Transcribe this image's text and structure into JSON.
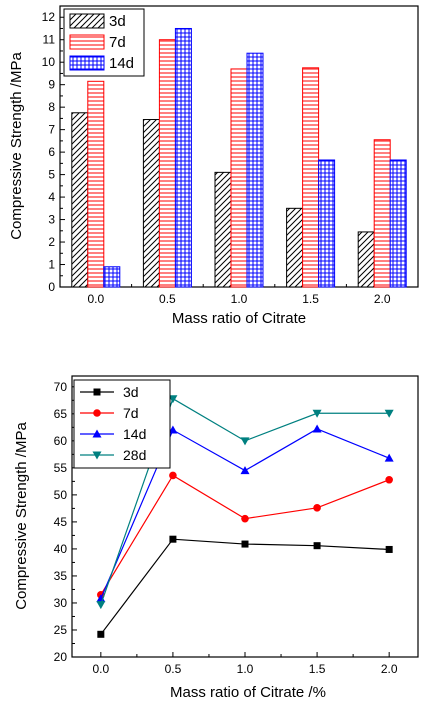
{
  "chart_data": [
    {
      "type": "bar",
      "xlabel": "Mass ratio of Citrate",
      "ylabel": "Compressive Strength /MPa",
      "categories": [
        "0.0",
        "0.5",
        "1.0",
        "1.5",
        "2.0"
      ],
      "ylim": [
        0,
        12.5
      ],
      "yticks": [
        "0",
        "1",
        "2",
        "3",
        "4",
        "5",
        "6",
        "7",
        "8",
        "9",
        "10",
        "11",
        "12"
      ],
      "legend_position": "top-left",
      "series": [
        {
          "name": "3d",
          "values": [
            7.75,
            7.45,
            5.1,
            3.5,
            2.45
          ],
          "color": "#000000",
          "pattern": "diagonal hatch"
        },
        {
          "name": "7d",
          "values": [
            9.15,
            11.0,
            9.7,
            9.75,
            6.55
          ],
          "color": "#ff0000",
          "pattern": "horizontal lines"
        },
        {
          "name": "14d",
          "values": [
            0.9,
            11.5,
            10.4,
            5.65,
            5.65
          ],
          "color": "#0000ff",
          "pattern": "grid"
        }
      ]
    },
    {
      "type": "line",
      "xlabel": "Mass ratio of Citrate  /%",
      "ylabel": "Compressive Strength /MPa",
      "x": [
        0.0,
        0.5,
        1.0,
        1.5,
        2.0
      ],
      "xticks": [
        "0.0",
        "0.5",
        "1.0",
        "1.5",
        "2.0"
      ],
      "xlim": [
        -0.2,
        2.2
      ],
      "ylim": [
        20,
        72
      ],
      "yticks": [
        "20",
        "25",
        "30",
        "35",
        "40",
        "45",
        "50",
        "55",
        "60",
        "65",
        "70"
      ],
      "legend_position": "top-left",
      "series": [
        {
          "name": "3d",
          "values": [
            24.2,
            41.8,
            40.9,
            40.6,
            39.9
          ],
          "color": "#000000",
          "marker": "square"
        },
        {
          "name": "7d",
          "values": [
            31.5,
            53.6,
            45.6,
            47.6,
            52.8
          ],
          "color": "#ff0000",
          "marker": "circle"
        },
        {
          "name": "14d",
          "values": [
            30.8,
            62.0,
            54.5,
            62.2,
            56.8
          ],
          "color": "#0000ff",
          "marker": "triangle-up"
        },
        {
          "name": "28d",
          "values": [
            29.7,
            67.8,
            60.0,
            65.1,
            65.1
          ],
          "color": "#008080",
          "marker": "triangle-down"
        }
      ]
    }
  ]
}
